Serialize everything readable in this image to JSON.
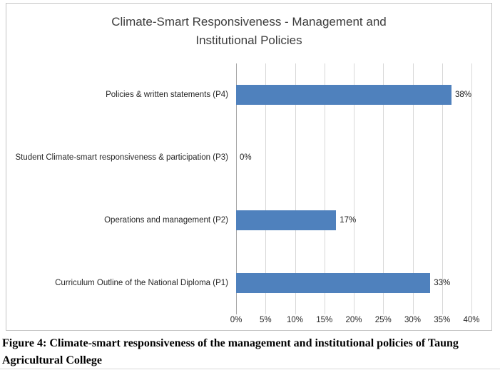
{
  "chart_data": {
    "type": "bar",
    "orientation": "horizontal",
    "title": "Climate-Smart Responsiveness - Management and Institutional Policies",
    "title_lines": [
      "Climate-Smart Responsiveness - Management and",
      "Institutional Policies"
    ],
    "categories": [
      "Policies & written statements (P4)",
      "Student Climate-smart responsiveness & participation (P3)",
      "Operations and management (P2)",
      "Curriculum Outline of the National Diploma (P1)"
    ],
    "values": [
      38,
      0,
      17,
      33
    ],
    "data_labels": [
      "38%",
      "0%",
      "17%",
      "33%"
    ],
    "x_ticks": [
      "0%",
      "5%",
      "10%",
      "15%",
      "20%",
      "25%",
      "30%",
      "35%",
      "40%"
    ],
    "xlim": [
      0,
      40
    ],
    "xlabel": "",
    "ylabel": "",
    "grid": true,
    "legend": false,
    "bar_color": "#4f81bd"
  },
  "caption": "Figure 4: Climate-smart responsiveness of the management and institutional policies of Taung Agricultural College"
}
